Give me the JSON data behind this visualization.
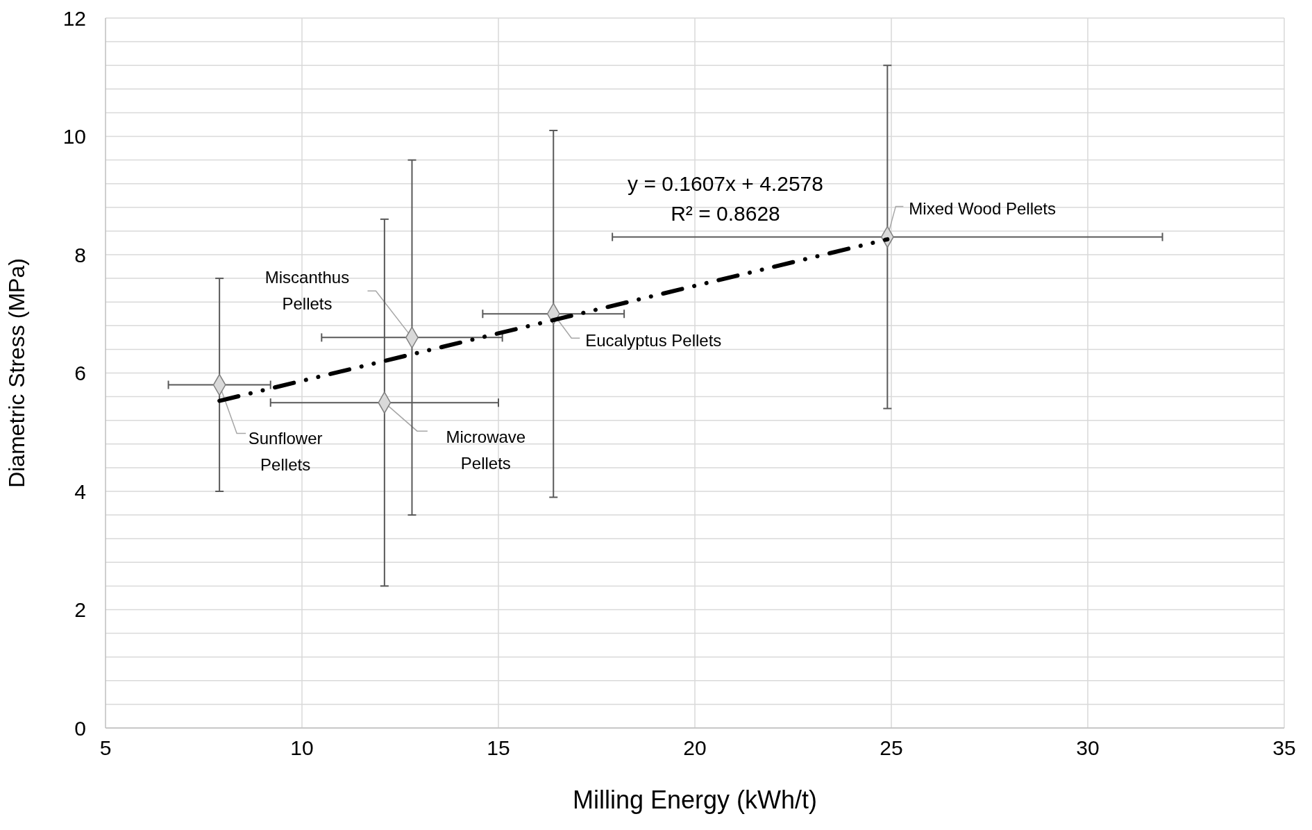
{
  "chart_data": {
    "type": "scatter",
    "xlabel": "Milling Energy (kWh/t)",
    "ylabel": "Diametric Stress (MPa)",
    "xlim": [
      5,
      35
    ],
    "xticks": [
      5,
      10,
      15,
      20,
      25,
      30,
      35
    ],
    "ylim": [
      0,
      12
    ],
    "yticks": [
      0,
      {
        "value": 0.4,
        "label": null
      },
      {
        "value": 0.8,
        "label": null
      },
      {
        "value": 1.2,
        "label": null
      },
      {
        "value": 1.6,
        "label": null
      },
      2,
      {
        "value": 2.4,
        "label": null
      },
      {
        "value": 2.8,
        "label": null
      },
      {
        "value": 3.2,
        "label": null
      },
      {
        "value": 3.6,
        "label": null
      },
      4,
      {
        "value": 4.4,
        "label": null
      },
      {
        "value": 4.8,
        "label": null
      },
      {
        "value": 5.2,
        "label": null
      },
      {
        "value": 5.6,
        "label": null
      },
      6,
      {
        "value": 6.4,
        "label": null
      },
      {
        "value": 6.8,
        "label": null
      },
      {
        "value": 7.2,
        "label": null
      },
      {
        "value": 7.6,
        "label": null
      },
      8,
      {
        "value": 8.4,
        "label": null
      },
      {
        "value": 8.8,
        "label": null
      },
      {
        "value": 9.2,
        "label": null
      },
      {
        "value": 9.6,
        "label": null
      },
      10,
      {
        "value": 10.4,
        "label": null
      },
      {
        "value": 10.8,
        "label": null
      },
      {
        "value": 11.2,
        "label": null
      },
      {
        "value": 11.6,
        "label": null
      },
      12
    ],
    "grid": true,
    "series": [
      {
        "marker": "diamond",
        "color": "#d9d9d9",
        "x": [
          7.9,
          12.1,
          12.8,
          16.4,
          24.9
        ],
        "values": [
          5.8,
          5.5,
          6.6,
          7.0,
          8.3
        ],
        "errors": [
          1.8,
          3.1,
          3.0,
          3.1,
          2.9
        ],
        "xerrors": [
          1.3,
          2.9,
          2.3,
          1.8,
          7.0
        ]
      },
      {
        "type": "line",
        "marker": "none",
        "color": "#000000",
        "line_style": "dashed",
        "x": [
          7.9,
          24.9
        ],
        "values": [
          5.53,
          8.26
        ]
      }
    ],
    "annotations": [
      {
        "text": "Sunflower\nPellets",
        "x": 7.9,
        "y": 5.8
      },
      {
        "text": "Microwave\nPellets",
        "x": 12.1,
        "y": 5.5
      },
      {
        "text": "Miscanthus\nPellets",
        "x": 12.8,
        "y": 6.6
      },
      {
        "text": "Eucalyptus Pellets",
        "x": 16.4,
        "y": 7.0
      },
      {
        "text": "Mixed Wood Pellets",
        "x": 24.9,
        "y": 8.3
      },
      "y = 0.1607x + 4.2578",
      "R² = 0.8628"
    ]
  }
}
